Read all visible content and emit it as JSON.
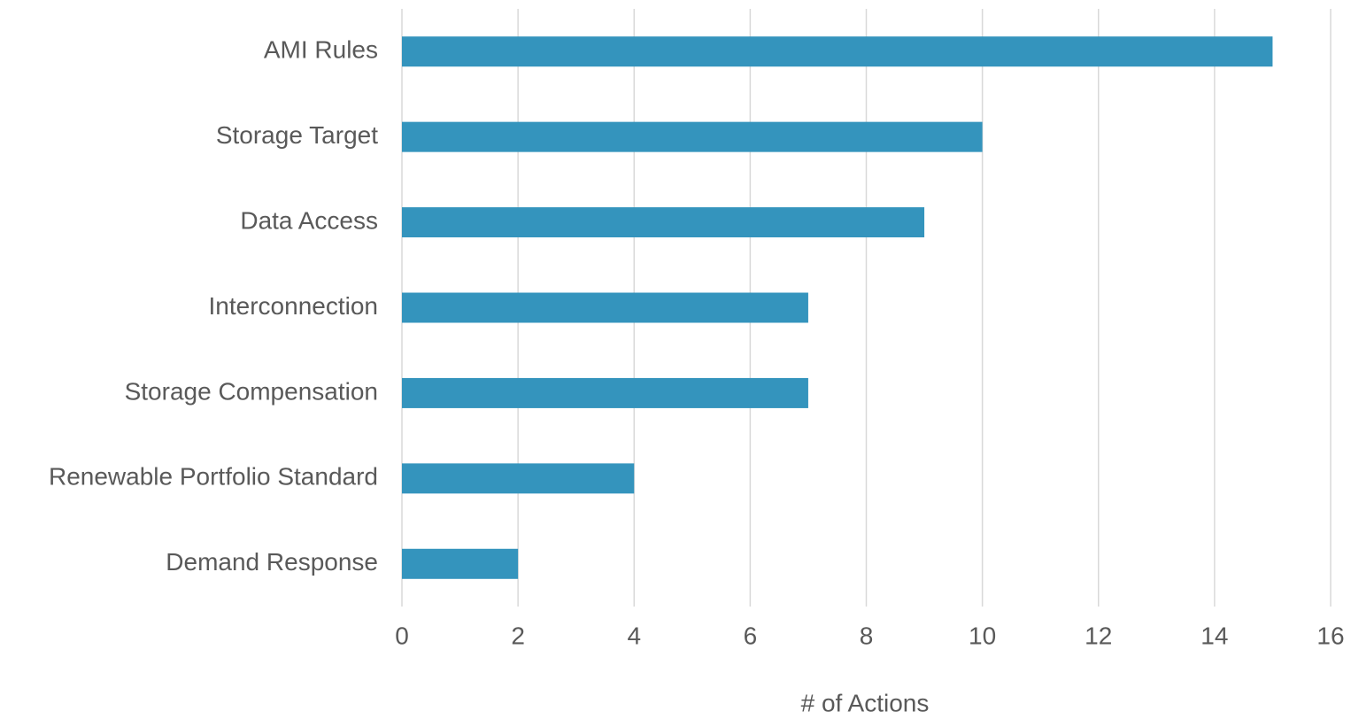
{
  "chart_data": {
    "type": "hbar",
    "x_label": "# of Actions",
    "categories": [
      "AMI Rules",
      "Storage Target",
      "Data Access",
      "Interconnection",
      "Storage Compensation",
      "Renewable Portfolio Standard",
      "Demand Response"
    ],
    "values": [
      15,
      10,
      9,
      7,
      7,
      4,
      2
    ],
    "color": "#3494bd",
    "xlim": [
      0,
      16
    ],
    "xticks": [
      0,
      2,
      4,
      6,
      8,
      10,
      12,
      14,
      16
    ],
    "grid": true
  }
}
